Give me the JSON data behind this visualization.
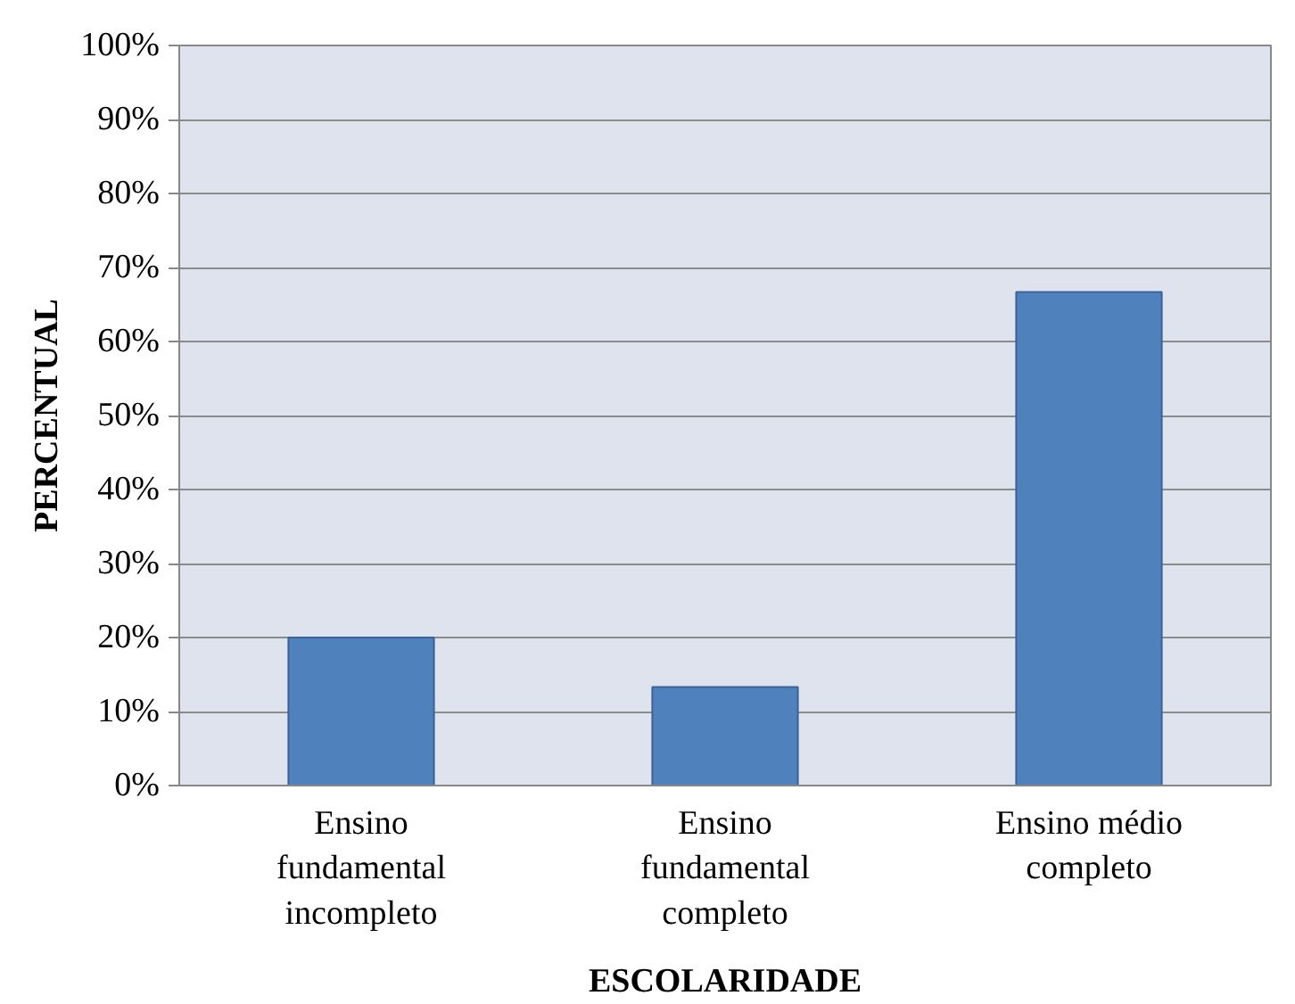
{
  "chart_data": {
    "type": "bar",
    "xlabel": "ESCOLARIDADE",
    "ylabel": "PERCENTUAL",
    "categories": [
      "Ensino fundamental incompleto",
      "Ensino fundamental completo",
      "Ensino médio completo"
    ],
    "values": [
      20,
      13.3,
      66.7
    ],
    "color": "#4f81bd",
    "ylim": [
      0,
      100
    ],
    "yticks": [
      {
        "value": 0,
        "label": "0%"
      },
      {
        "value": 10,
        "label": "10%"
      },
      {
        "value": 20,
        "label": "20%"
      },
      {
        "value": 30,
        "label": "30%"
      },
      {
        "value": 40,
        "label": "40%"
      },
      {
        "value": 50,
        "label": "50%"
      },
      {
        "value": 60,
        "label": "60%"
      },
      {
        "value": 70,
        "label": "70%"
      },
      {
        "value": 80,
        "label": "80%"
      },
      {
        "value": 90,
        "label": "90%"
      },
      {
        "value": 100,
        "label": "100%"
      }
    ],
    "grid": "y"
  }
}
